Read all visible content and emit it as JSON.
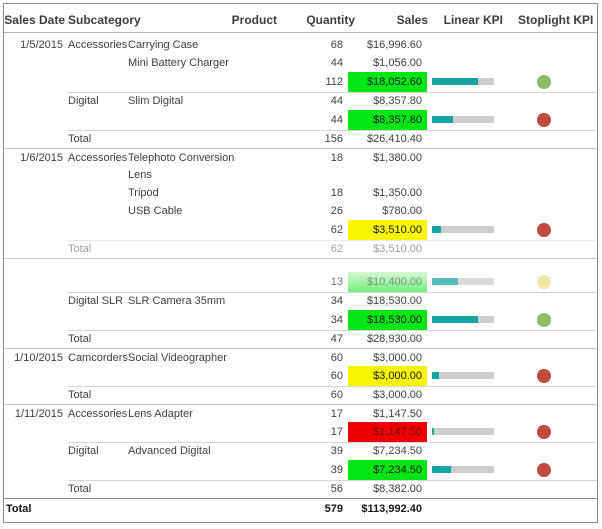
{
  "header": {
    "columns": [
      "Sales Date",
      "Subcategory",
      "Product",
      "Quantity",
      "Sales",
      "Linear KPI",
      "Stoplight KPI"
    ]
  },
  "colors": {
    "text": "#404040",
    "green": "#00e513",
    "yellow": "#f8f500",
    "red": "#ee0000",
    "red_box_text": "#7a120d",
    "green_faded_top": "#c8f6c6",
    "green_faded_bottom": "#3de84b",
    "teal": "#14a5a2",
    "track": "#cdcdcd",
    "dot_green": "#8bbd6b",
    "dot_red": "#c24a3e",
    "dot_yellow": "#e8dd85"
  },
  "rows": [
    {
      "type": "item",
      "date": "1/5/2015",
      "subcategory": "Accessories",
      "product": "Carrying Case",
      "quantity": "68",
      "sales": "$16,996.60"
    },
    {
      "type": "item",
      "product": "Mini Battery Charger",
      "quantity": "44",
      "sales": "$1,056.00"
    },
    {
      "type": "subtotal",
      "quantity": "112",
      "sales": "$18,052.60",
      "sales_bg": "green",
      "kpi_pct": 74,
      "dot": "green"
    },
    {
      "type": "item",
      "subcategory": "Digital",
      "product": "Slim Digital",
      "quantity": "44",
      "sales": "$8,357.80",
      "border": "inner"
    },
    {
      "type": "subtotal",
      "quantity": "44",
      "sales": "$8,357.80",
      "sales_bg": "green",
      "kpi_pct": 34,
      "dot": "red"
    },
    {
      "type": "total",
      "label": "Total",
      "quantity": "156",
      "sales": "$26,410.40",
      "border": "inner"
    },
    {
      "type": "item",
      "date": "1/6/2015",
      "subcategory": "Accessories",
      "product": "Telephoto Conversion Lens",
      "quantity": "18",
      "sales": "$1,380.00",
      "border": "full",
      "tall": true
    },
    {
      "type": "item",
      "product": "Tripod",
      "quantity": "18",
      "sales": "$1,350.00"
    },
    {
      "type": "item",
      "product": "USB Cable",
      "quantity": "26",
      "sales": "$780.00"
    },
    {
      "type": "subtotal",
      "quantity": "62",
      "sales": "$3,510.00",
      "sales_bg": "yellow",
      "kpi_pct": 15,
      "dot": "red"
    },
    {
      "type": "total",
      "label": "Total",
      "quantity": "62",
      "sales": "$3,510.00",
      "border": "inner",
      "faded": true
    },
    {
      "type": "gap",
      "border": "full"
    },
    {
      "type": "subtotal",
      "quantity": "13",
      "sales": "$10,400.00",
      "sales_bg": "green-faded",
      "kpi_pct": 42,
      "dot": "yellow",
      "faded": "soft"
    },
    {
      "type": "item",
      "subcategory": "Digital SLR",
      "product": "SLR Camera 35mm",
      "quantity": "34",
      "sales": "$18,530.00",
      "border": "inner"
    },
    {
      "type": "subtotal",
      "quantity": "34",
      "sales": "$18,530.00",
      "sales_bg": "green",
      "kpi_pct": 74,
      "dot": "green"
    },
    {
      "type": "total",
      "label": "Total",
      "quantity": "47",
      "sales": "$28,930.00",
      "border": "inner"
    },
    {
      "type": "item",
      "date": "1/10/2015",
      "subcategory": "Camcorders",
      "product": "Social Videographer",
      "quantity": "60",
      "sales": "$3,000.00",
      "border": "full"
    },
    {
      "type": "subtotal",
      "quantity": "60",
      "sales": "$3,000.00",
      "sales_bg": "yellow",
      "kpi_pct": 11,
      "dot": "red"
    },
    {
      "type": "total",
      "label": "Total",
      "quantity": "60",
      "sales": "$3,000.00",
      "border": "inner"
    },
    {
      "type": "item",
      "date": "1/11/2015",
      "subcategory": "Accessories",
      "product": "Lens Adapter",
      "quantity": "17",
      "sales": "$1,147.50",
      "border": "full"
    },
    {
      "type": "subtotal",
      "quantity": "17",
      "sales": "$1,147.50",
      "sales_bg": "red",
      "kpi_pct": 4,
      "dot": "red"
    },
    {
      "type": "item",
      "subcategory": "Digital",
      "product": "Advanced Digital",
      "quantity": "39",
      "sales": "$7,234.50",
      "border": "inner"
    },
    {
      "type": "subtotal",
      "quantity": "39",
      "sales": "$7,234.50",
      "sales_bg": "green",
      "kpi_pct": 31,
      "dot": "red"
    },
    {
      "type": "total",
      "label": "Total",
      "quantity": "56",
      "sales": "$8,382.00",
      "border": "inner"
    },
    {
      "type": "grand",
      "label": "Total",
      "quantity": "579",
      "sales": "$113,992.40",
      "border": "grand"
    }
  ]
}
